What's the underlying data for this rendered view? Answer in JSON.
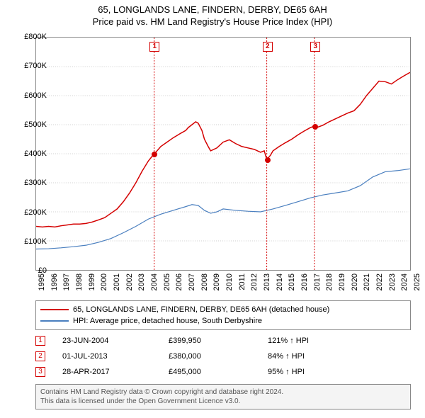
{
  "titles": {
    "line1": "65, LONGLANDS LANE, FINDERN, DERBY, DE65 6AH",
    "line2": "Price paid vs. HM Land Registry's House Price Index (HPI)"
  },
  "chart": {
    "type": "line",
    "background_color": "#ffffff",
    "grid_color": "#cccccc",
    "axis_color": "#888888",
    "xlim": [
      1995,
      2025
    ],
    "ylim": [
      0,
      800000
    ],
    "yticks": [
      0,
      100000,
      200000,
      300000,
      400000,
      500000,
      600000,
      700000,
      800000
    ],
    "ytick_labels": [
      "£0",
      "£100K",
      "£200K",
      "£300K",
      "£400K",
      "£500K",
      "£600K",
      "£700K",
      "£800K"
    ],
    "xticks": [
      1995,
      1996,
      1997,
      1998,
      1999,
      2000,
      2001,
      2002,
      2003,
      2004,
      2005,
      2006,
      2007,
      2008,
      2009,
      2010,
      2011,
      2012,
      2013,
      2014,
      2015,
      2016,
      2017,
      2018,
      2019,
      2020,
      2021,
      2022,
      2023,
      2024,
      2025
    ],
    "xtick_labels": [
      "1995",
      "1996",
      "1997",
      "1998",
      "1999",
      "2000",
      "2001",
      "2002",
      "2003",
      "2004",
      "2005",
      "2006",
      "2007",
      "2008",
      "2009",
      "2010",
      "2011",
      "2012",
      "2013",
      "2014",
      "2015",
      "2016",
      "2017",
      "2018",
      "2019",
      "2020",
      "2021",
      "2022",
      "2023",
      "2024",
      "2025"
    ],
    "label_fontsize": 11,
    "series": [
      {
        "name": "property",
        "color": "#d40000",
        "line_width": 1.5,
        "points": [
          [
            1995.0,
            150000
          ],
          [
            1995.5,
            148000
          ],
          [
            1996.0,
            150000
          ],
          [
            1996.5,
            148000
          ],
          [
            1997.0,
            152000
          ],
          [
            1997.5,
            155000
          ],
          [
            1998.0,
            158000
          ],
          [
            1998.5,
            158000
          ],
          [
            1999.0,
            160000
          ],
          [
            1999.5,
            165000
          ],
          [
            2000.0,
            172000
          ],
          [
            2000.5,
            180000
          ],
          [
            2001.0,
            195000
          ],
          [
            2001.5,
            210000
          ],
          [
            2002.0,
            235000
          ],
          [
            2002.5,
            265000
          ],
          [
            2003.0,
            300000
          ],
          [
            2003.5,
            340000
          ],
          [
            2004.0,
            375000
          ],
          [
            2004.47,
            399950
          ],
          [
            2004.7,
            410000
          ],
          [
            2005.0,
            425000
          ],
          [
            2005.5,
            440000
          ],
          [
            2006.0,
            455000
          ],
          [
            2006.5,
            468000
          ],
          [
            2007.0,
            480000
          ],
          [
            2007.2,
            490000
          ],
          [
            2007.5,
            500000
          ],
          [
            2007.8,
            510000
          ],
          [
            2008.0,
            505000
          ],
          [
            2008.3,
            480000
          ],
          [
            2008.5,
            450000
          ],
          [
            2008.8,
            425000
          ],
          [
            2009.0,
            410000
          ],
          [
            2009.5,
            420000
          ],
          [
            2010.0,
            440000
          ],
          [
            2010.5,
            448000
          ],
          [
            2011.0,
            435000
          ],
          [
            2011.5,
            425000
          ],
          [
            2012.0,
            420000
          ],
          [
            2012.5,
            415000
          ],
          [
            2013.0,
            405000
          ],
          [
            2013.3,
            410000
          ],
          [
            2013.5,
            380000
          ],
          [
            2013.8,
            395000
          ],
          [
            2014.0,
            410000
          ],
          [
            2014.5,
            425000
          ],
          [
            2015.0,
            438000
          ],
          [
            2015.5,
            450000
          ],
          [
            2016.0,
            465000
          ],
          [
            2016.5,
            478000
          ],
          [
            2017.0,
            490000
          ],
          [
            2017.32,
            495000
          ],
          [
            2017.5,
            490000
          ],
          [
            2018.0,
            498000
          ],
          [
            2018.5,
            510000
          ],
          [
            2019.0,
            520000
          ],
          [
            2019.5,
            530000
          ],
          [
            2020.0,
            540000
          ],
          [
            2020.5,
            548000
          ],
          [
            2021.0,
            570000
          ],
          [
            2021.5,
            600000
          ],
          [
            2022.0,
            625000
          ],
          [
            2022.5,
            650000
          ],
          [
            2023.0,
            648000
          ],
          [
            2023.5,
            640000
          ],
          [
            2024.0,
            655000
          ],
          [
            2024.5,
            668000
          ],
          [
            2025.0,
            680000
          ]
        ]
      },
      {
        "name": "hpi",
        "color": "#4a7fbf",
        "line_width": 1.2,
        "points": [
          [
            1995.0,
            72000
          ],
          [
            1996.0,
            73000
          ],
          [
            1997.0,
            76000
          ],
          [
            1998.0,
            80000
          ],
          [
            1999.0,
            85000
          ],
          [
            2000.0,
            95000
          ],
          [
            2001.0,
            108000
          ],
          [
            2002.0,
            128000
          ],
          [
            2003.0,
            150000
          ],
          [
            2004.0,
            175000
          ],
          [
            2005.0,
            192000
          ],
          [
            2006.0,
            205000
          ],
          [
            2007.0,
            218000
          ],
          [
            2007.5,
            225000
          ],
          [
            2008.0,
            222000
          ],
          [
            2008.5,
            205000
          ],
          [
            2009.0,
            195000
          ],
          [
            2009.5,
            200000
          ],
          [
            2010.0,
            210000
          ],
          [
            2011.0,
            205000
          ],
          [
            2012.0,
            202000
          ],
          [
            2013.0,
            200000
          ],
          [
            2014.0,
            210000
          ],
          [
            2015.0,
            222000
          ],
          [
            2016.0,
            235000
          ],
          [
            2017.0,
            248000
          ],
          [
            2018.0,
            258000
          ],
          [
            2019.0,
            265000
          ],
          [
            2020.0,
            272000
          ],
          [
            2021.0,
            290000
          ],
          [
            2022.0,
            320000
          ],
          [
            2023.0,
            338000
          ],
          [
            2024.0,
            342000
          ],
          [
            2025.0,
            348000
          ]
        ]
      }
    ],
    "sale_markers": [
      {
        "n": "1",
        "x": 2004.47,
        "y": 399950,
        "color": "#d40000"
      },
      {
        "n": "2",
        "x": 2013.5,
        "y": 380000,
        "color": "#d40000"
      },
      {
        "n": "3",
        "x": 2017.32,
        "y": 495000,
        "color": "#d40000"
      }
    ]
  },
  "legend": {
    "items": [
      {
        "color": "#d40000",
        "label": "65, LONGLANDS LANE, FINDERN, DERBY, DE65 6AH (detached house)"
      },
      {
        "color": "#4a7fbf",
        "label": "HPI: Average price, detached house, South Derbyshire"
      }
    ]
  },
  "sales": [
    {
      "n": "1",
      "color": "#d40000",
      "date": "23-JUN-2004",
      "price": "£399,950",
      "pct": "121% ↑ HPI"
    },
    {
      "n": "2",
      "color": "#d40000",
      "date": "01-JUL-2013",
      "price": "£380,000",
      "pct": "84% ↑ HPI"
    },
    {
      "n": "3",
      "color": "#d40000",
      "date": "28-APR-2017",
      "price": "£495,000",
      "pct": "95% ↑ HPI"
    }
  ],
  "footer": {
    "line1": "Contains HM Land Registry data © Crown copyright and database right 2024.",
    "line2": "This data is licensed under the Open Government Licence v3.0."
  }
}
